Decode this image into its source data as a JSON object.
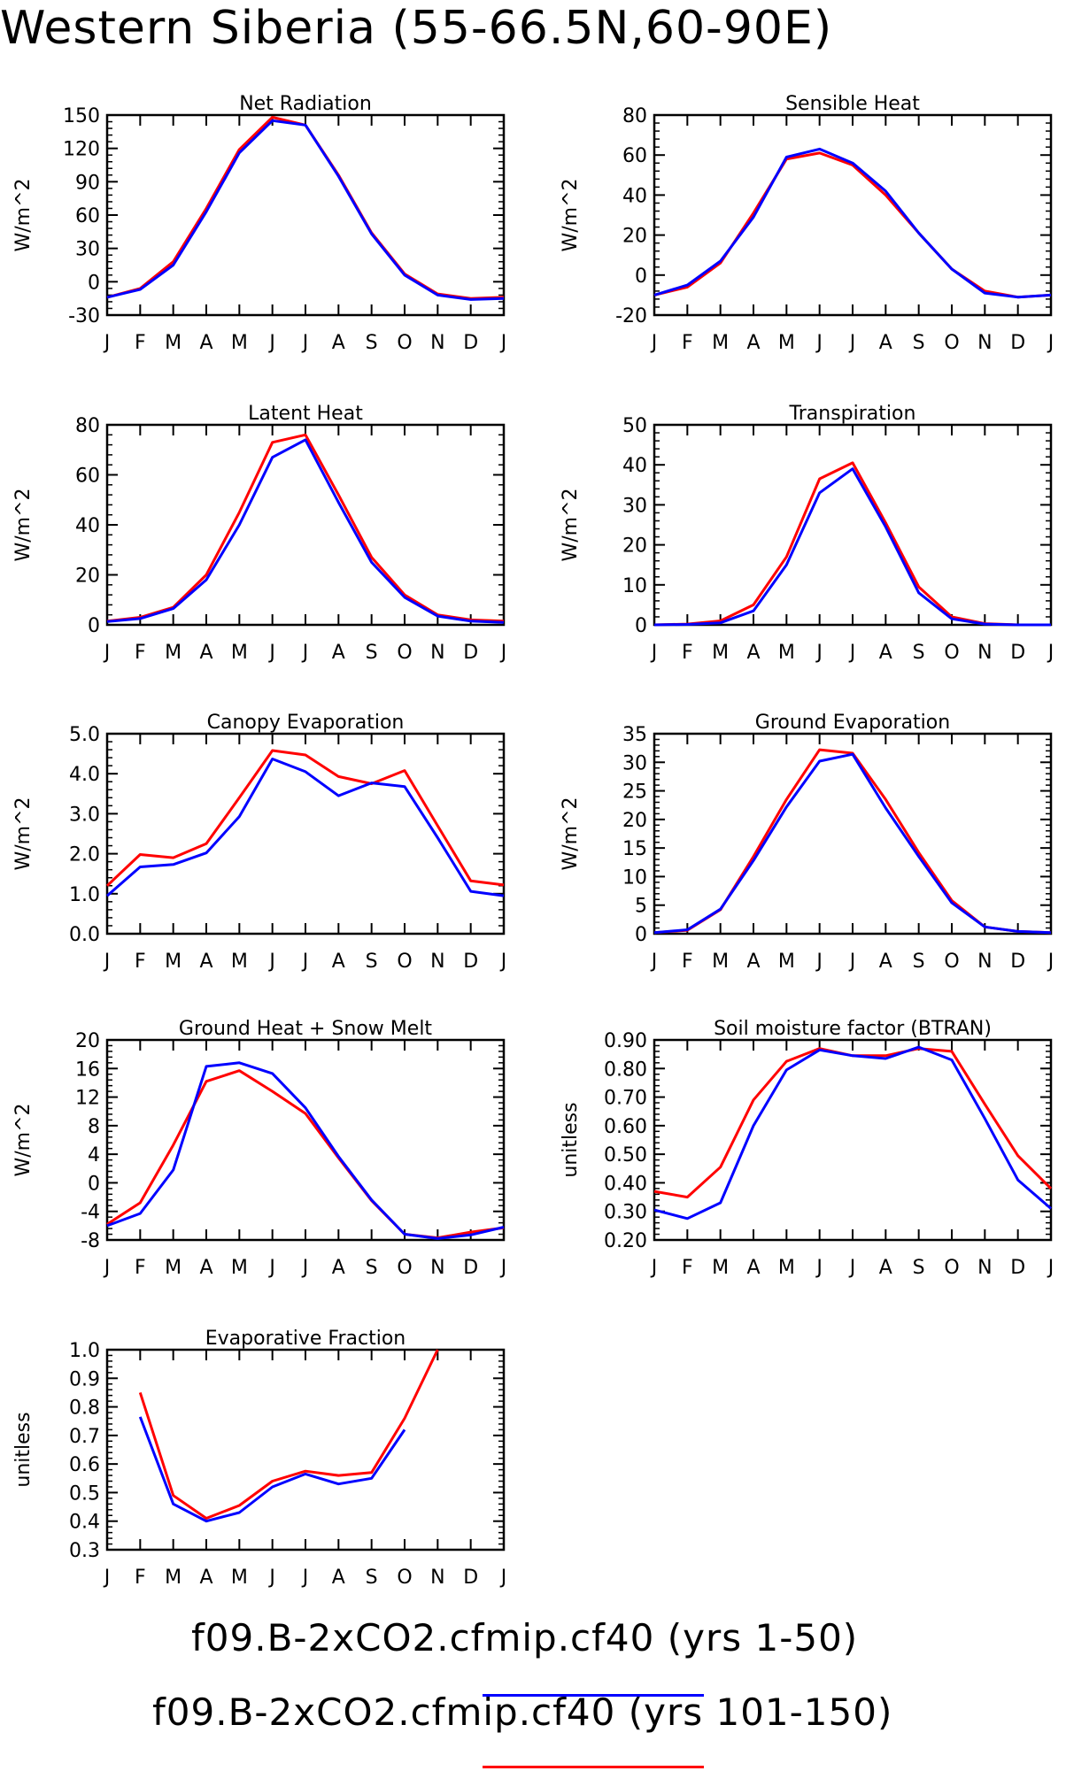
{
  "page_title": "Western Siberia (55-66.5N,60-90E)",
  "months": [
    "J",
    "F",
    "M",
    "A",
    "M",
    "J",
    "J",
    "A",
    "S",
    "O",
    "N",
    "D",
    "J"
  ],
  "legend": [
    {
      "label": "f09.B-2xCO2.cfmip.cf40 (yrs 1-50)",
      "color": "#0000ff"
    },
    {
      "label": "f09.B-2xCO2.cfmip.cf40 (yrs 101-150)",
      "color": "#ff0000"
    }
  ],
  "chart_data": [
    {
      "type": "line",
      "title": "Net Radiation",
      "ylabel": "W/m^2",
      "ylim": [
        -30,
        150
      ],
      "yticks": [
        -30,
        0,
        30,
        60,
        90,
        120,
        150
      ],
      "ytick_labels": [
        "-30",
        "0",
        "30",
        "60",
        "90",
        "120",
        "150"
      ],
      "series": [
        {
          "color": "#ff0000",
          "values": [
            -14,
            -6,
            18,
            66,
            119,
            148,
            141,
            96,
            44,
            7,
            -11,
            -15,
            -14
          ]
        },
        {
          "color": "#0000ff",
          "values": [
            -14,
            -7,
            15,
            63,
            116,
            145,
            141,
            95,
            43,
            6,
            -12,
            -16,
            -15
          ]
        }
      ]
    },
    {
      "type": "line",
      "title": "Sensible Heat",
      "ylabel": "W/m^2",
      "ylim": [
        -20,
        80
      ],
      "yticks": [
        -20,
        0,
        20,
        40,
        60,
        80
      ],
      "ytick_labels": [
        "-20",
        "0",
        "20",
        "40",
        "60",
        "80"
      ],
      "series": [
        {
          "color": "#ff0000",
          "values": [
            -10,
            -6,
            6,
            31,
            58,
            61,
            55,
            40,
            21,
            3,
            -8,
            -11,
            -10
          ]
        },
        {
          "color": "#0000ff",
          "values": [
            -10,
            -5,
            7,
            29,
            59,
            63,
            56,
            42,
            21,
            3,
            -9,
            -11,
            -10
          ]
        }
      ]
    },
    {
      "type": "line",
      "title": "Latent Heat",
      "ylabel": "W/m^2",
      "ylim": [
        0,
        80
      ],
      "yticks": [
        0,
        20,
        40,
        60,
        80
      ],
      "ytick_labels": [
        "0",
        "20",
        "40",
        "60",
        "80"
      ],
      "series": [
        {
          "color": "#ff0000",
          "values": [
            1.5,
            3,
            7,
            20,
            45,
            73,
            76,
            52,
            27,
            12,
            4,
            2,
            1.5
          ]
        },
        {
          "color": "#0000ff",
          "values": [
            1.3,
            2.5,
            6.5,
            18,
            40,
            67,
            74,
            49,
            25,
            11,
            3.5,
            1.5,
            1
          ]
        }
      ]
    },
    {
      "type": "line",
      "title": "Transpiration",
      "ylabel": "W/m^2",
      "ylim": [
        0,
        50
      ],
      "yticks": [
        0,
        10,
        20,
        30,
        40,
        50
      ],
      "ytick_labels": [
        "0",
        "10",
        "20",
        "30",
        "40",
        "50"
      ],
      "series": [
        {
          "color": "#ff0000",
          "values": [
            0,
            0.2,
            1,
            5,
            17,
            36.5,
            40.5,
            25.5,
            9.5,
            2,
            0.3,
            0,
            0
          ]
        },
        {
          "color": "#0000ff",
          "values": [
            0,
            0.1,
            0.5,
            3.5,
            15,
            33,
            39,
            24.5,
            8,
            1.5,
            0.2,
            0,
            0
          ]
        }
      ]
    },
    {
      "type": "line",
      "title": "Canopy Evaporation",
      "ylabel": "W/m^2",
      "ylim": [
        0,
        5
      ],
      "yticks": [
        0,
        1,
        2,
        3,
        4,
        5
      ],
      "ytick_labels": [
        "0.0",
        "1.0",
        "2.0",
        "3.0",
        "4.0",
        "5.0"
      ],
      "series": [
        {
          "color": "#ff0000",
          "values": [
            1.2,
            1.98,
            1.9,
            2.25,
            3.4,
            4.58,
            4.47,
            3.93,
            3.75,
            4.08,
            2.7,
            1.32,
            1.22
          ]
        },
        {
          "color": "#0000ff",
          "values": [
            0.95,
            1.67,
            1.73,
            2.02,
            2.93,
            4.37,
            4.05,
            3.45,
            3.77,
            3.68,
            2.4,
            1.06,
            0.95
          ]
        }
      ]
    },
    {
      "type": "line",
      "title": "Ground Evaporation",
      "ylabel": "W/m^2",
      "ylim": [
        0,
        35
      ],
      "yticks": [
        0,
        5,
        10,
        15,
        20,
        25,
        30,
        35
      ],
      "ytick_labels": [
        "0",
        "5",
        "10",
        "15",
        "20",
        "25",
        "30",
        "35"
      ],
      "series": [
        {
          "color": "#ff0000",
          "values": [
            0.2,
            0.6,
            4.2,
            13.5,
            23.5,
            32.2,
            31.6,
            23.5,
            14.2,
            5.8,
            1.2,
            0.4,
            0.2
          ]
        },
        {
          "color": "#0000ff",
          "values": [
            0.2,
            0.7,
            4.3,
            12.8,
            22.2,
            30.2,
            31.4,
            22,
            13.5,
            5.4,
            1.2,
            0.4,
            0.2
          ]
        }
      ]
    },
    {
      "type": "line",
      "title": "Ground Heat + Snow Melt",
      "ylabel": "W/m^2",
      "ylim": [
        -8,
        20
      ],
      "yticks": [
        -8,
        -4,
        0,
        4,
        8,
        12,
        16,
        20
      ],
      "ytick_labels": [
        "-8",
        "-4",
        "0",
        "4",
        "8",
        "12",
        "16",
        "20"
      ],
      "series": [
        {
          "color": "#ff0000",
          "values": [
            -5.8,
            -2.8,
            5.3,
            14.2,
            15.7,
            12.8,
            9.7,
            3.5,
            -2.5,
            -7.2,
            -7.7,
            -6.9,
            -6.3
          ]
        },
        {
          "color": "#0000ff",
          "values": [
            -6,
            -4.3,
            1.8,
            16.3,
            16.8,
            15.3,
            10.5,
            3.7,
            -2.4,
            -7.2,
            -7.8,
            -7.3,
            -6.2
          ]
        }
      ]
    },
    {
      "type": "line",
      "title": "Soil moisture factor (BTRAN)",
      "ylabel": "unitless",
      "ylim": [
        0.2,
        0.9
      ],
      "yticks": [
        0.2,
        0.3,
        0.4,
        0.5,
        0.6,
        0.7,
        0.8,
        0.9
      ],
      "ytick_labels": [
        "0.20",
        "0.30",
        "0.40",
        "0.50",
        "0.60",
        "0.70",
        "0.80",
        "0.90"
      ],
      "series": [
        {
          "color": "#ff0000",
          "values": [
            0.37,
            0.35,
            0.455,
            0.69,
            0.825,
            0.87,
            0.845,
            0.845,
            0.87,
            0.86,
            0.675,
            0.495,
            0.38
          ]
        },
        {
          "color": "#0000ff",
          "values": [
            0.305,
            0.275,
            0.33,
            0.6,
            0.795,
            0.865,
            0.845,
            0.835,
            0.875,
            0.83,
            0.625,
            0.41,
            0.31
          ]
        }
      ]
    },
    {
      "type": "line",
      "title": "Evaporative Fraction",
      "ylabel": "unitless",
      "ylim": [
        0.3,
        1.0
      ],
      "yticks": [
        0.3,
        0.4,
        0.5,
        0.6,
        0.7,
        0.8,
        0.9,
        1.0
      ],
      "ytick_labels": [
        "0.3",
        "0.4",
        "0.5",
        "0.6",
        "0.7",
        "0.8",
        "0.9",
        "1.0"
      ],
      "series": [
        {
          "color": "#ff0000",
          "values": [
            null,
            0.85,
            0.49,
            0.41,
            0.455,
            0.54,
            0.575,
            0.56,
            0.57,
            0.76,
            1.0,
            null,
            null
          ]
        },
        {
          "color": "#0000ff",
          "values": [
            null,
            0.765,
            0.46,
            0.4,
            0.43,
            0.52,
            0.565,
            0.53,
            0.55,
            0.72,
            null,
            null,
            null
          ]
        }
      ]
    }
  ]
}
